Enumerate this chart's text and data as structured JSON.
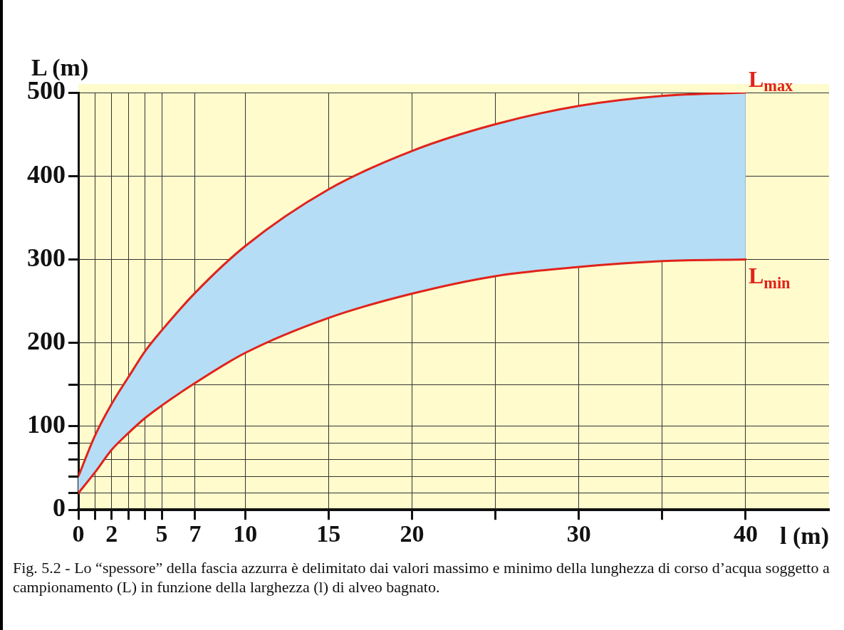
{
  "chart_data": {
    "type": "line",
    "xlabel": "l (m)",
    "ylabel": "L (m)",
    "xlim": [
      0,
      45
    ],
    "ylim": [
      0,
      500
    ],
    "xticks": [
      0,
      {
        "value": 1,
        "label": null
      },
      2,
      {
        "value": 3,
        "label": null
      },
      {
        "value": 4,
        "label": null
      },
      5,
      7,
      10,
      15,
      20,
      {
        "value": 25,
        "label": null
      },
      30,
      {
        "value": 35,
        "label": null
      },
      40
    ],
    "yticks": [
      0,
      {
        "value": 20,
        "label": null
      },
      {
        "value": 40,
        "label": null
      },
      {
        "value": 60,
        "label": null
      },
      {
        "value": 80,
        "label": null
      },
      100,
      {
        "value": 150,
        "label": null
      },
      200,
      300,
      400,
      500
    ],
    "grid": true,
    "legend": false,
    "marker": "none",
    "line_style": "solid",
    "series": [
      {
        "type": "area",
        "color": "#b5ddf6",
        "x": [
          0,
          1,
          2,
          3,
          4,
          5,
          7,
          10,
          15,
          20,
          25,
          30,
          35,
          40
        ],
        "values": [
          40,
          89,
          127,
          159,
          190,
          215,
          260,
          316,
          384,
          430,
          462,
          484,
          496,
          500
        ]
      },
      {
        "name": "L$_{max}$",
        "color": "#e0231b",
        "x": [
          0,
          1,
          2,
          3,
          4,
          5,
          7,
          10,
          15,
          20,
          25,
          30,
          35,
          40
        ],
        "values": [
          40,
          89,
          127,
          159,
          190,
          215,
          260,
          316,
          384,
          430,
          462,
          484,
          496,
          500
        ]
      },
      {
        "name": "L$_{min}$",
        "color": "#e0231b",
        "x": [
          0,
          1,
          2,
          3,
          4,
          5,
          7,
          10,
          15,
          20,
          25,
          30,
          35,
          40
        ],
        "values": [
          20,
          45,
          72,
          92,
          110,
          125,
          152,
          188,
          230,
          259,
          280,
          291,
          298,
          300
        ]
      }
    ],
    "annotations": [
      "Fig. 5.2 - Lo “spessore” della fascia azzurra è delimitato dai valori massimo e minimo della lunghezza di corso d’acqua soggetto a campionamento (L) in funzione della larghezza (l) di alveo bagnato."
    ]
  }
}
